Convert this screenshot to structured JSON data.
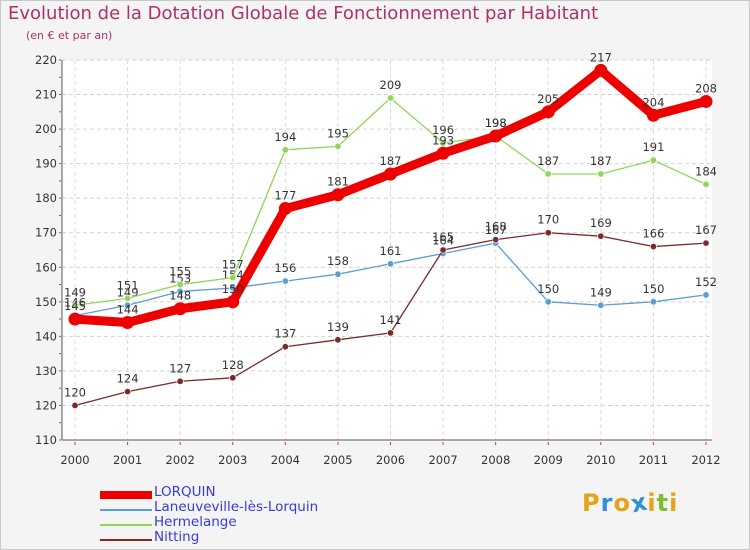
{
  "header": {
    "title": "Evolution de la Dotation Globale de Fonctionnement par Habitant",
    "subtitle": "(en € et par an)"
  },
  "logo": {
    "letters": [
      "P",
      "r",
      "o",
      "x",
      "i",
      "t",
      "i"
    ],
    "colors": [
      "#e6a316",
      "#2f8fd8",
      "#e6a316",
      "#2f8fd8",
      "#e6a316",
      "#7cbf2f",
      "#e6a316"
    ]
  },
  "chart_data": {
    "type": "line",
    "title": "Evolution de la Dotation Globale de Fonctionnement par Habitant",
    "subtitle": "(en € et par an)",
    "xlabel": "",
    "ylabel": "",
    "x": [
      "2000",
      "2001",
      "2002",
      "2003",
      "2004",
      "2005",
      "2006",
      "2007",
      "2008",
      "2009",
      "2010",
      "2011",
      "2012"
    ],
    "ylim": [
      110,
      220
    ],
    "yticks": [
      110,
      120,
      130,
      140,
      150,
      160,
      170,
      180,
      190,
      200,
      210,
      220
    ],
    "grid": true,
    "legend_position": "bottom-left",
    "series": [
      {
        "name": "Laneuveville-lès-Lorquin",
        "color": "#5a9fd4",
        "values": [
          146,
          149,
          153,
          154,
          156,
          158,
          161,
          164,
          167,
          150,
          149,
          150,
          152
        ],
        "labels": [
          "146",
          "149",
          "153",
          "154",
          "156",
          "158",
          "161",
          "164",
          "167",
          "150",
          "149",
          "150",
          "152"
        ]
      },
      {
        "name": "Hermelange",
        "color": "#8ed65a",
        "values": [
          149,
          151,
          155,
          157,
          194,
          195,
          209,
          196,
          198,
          187,
          187,
          191,
          184
        ],
        "labels": [
          "149",
          "151",
          "155",
          "157",
          "194",
          "195",
          "209",
          "196",
          "198",
          "187",
          "187",
          "191",
          "184"
        ]
      },
      {
        "name": "Nitting",
        "color": "#7a2a2a",
        "values": [
          120,
          124,
          127,
          128,
          137,
          139,
          141,
          165,
          168,
          170,
          169,
          166,
          167
        ],
        "labels": [
          "120",
          "124",
          "127",
          "128",
          "137",
          "139",
          "141",
          "165",
          "168",
          "170",
          "169",
          "166",
          "167"
        ]
      },
      {
        "name": "LORQUIN",
        "color": "#ee0000",
        "values": [
          145,
          144,
          148,
          150,
          177,
          181,
          187,
          193,
          198,
          205,
          217,
          204,
          208
        ],
        "labels": [
          "145",
          "144",
          "148",
          "150",
          "177",
          "181",
          "187",
          "193",
          "198",
          "205",
          "217",
          "204",
          "208"
        ]
      }
    ],
    "legend_order": [
      "LORQUIN",
      "Laneuveville-lès-Lorquin",
      "Hermelange",
      "Nitting"
    ]
  }
}
